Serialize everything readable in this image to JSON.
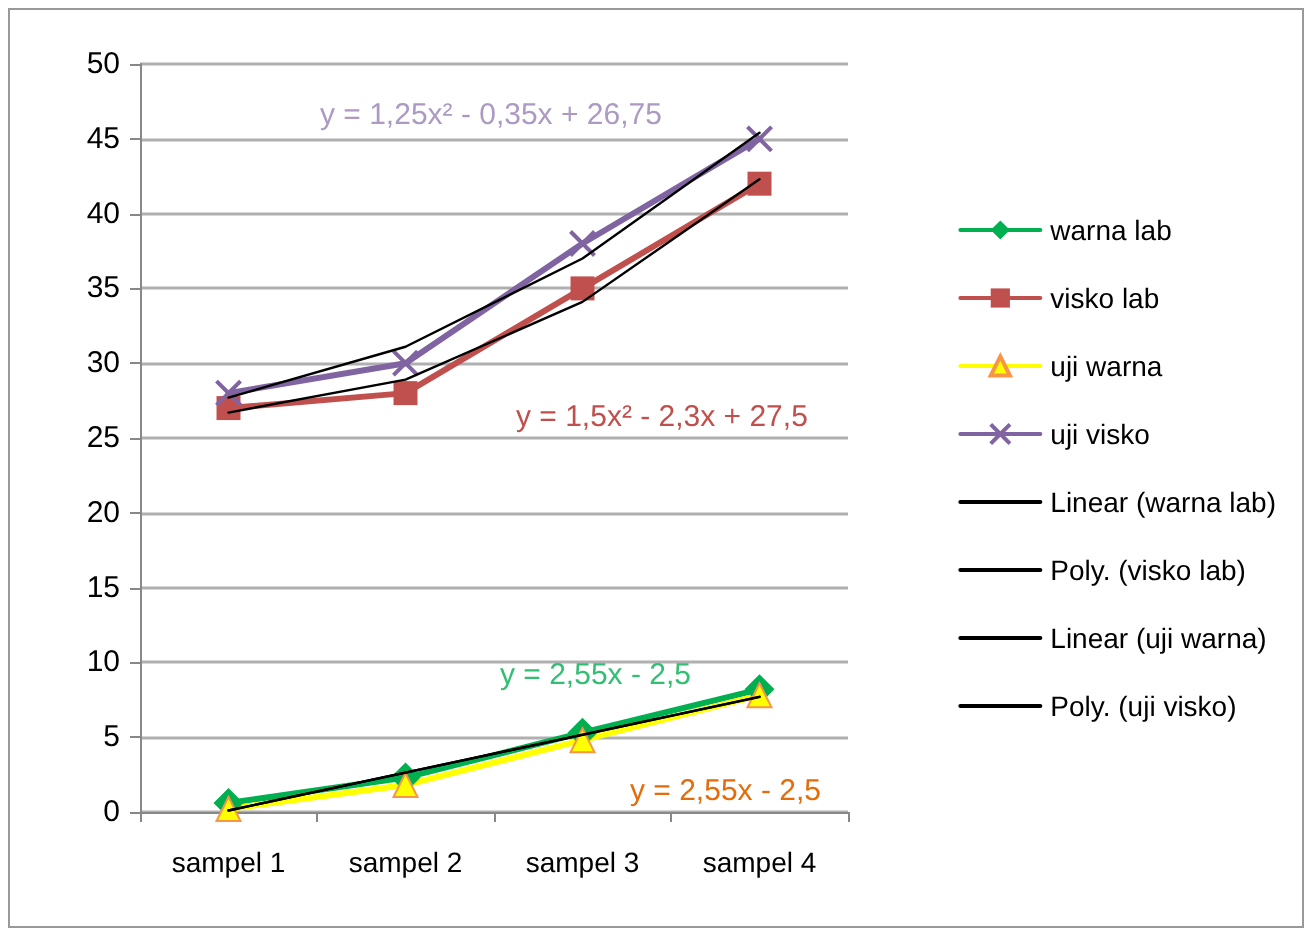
{
  "chart_data": {
    "type": "line",
    "categories": [
      "sampel 1",
      "sampel 2",
      "sampel 3",
      "sampel 4"
    ],
    "series": [
      {
        "name": "warna lab",
        "color": "#00b050",
        "marker": "diamond",
        "values": [
          0.6,
          2.3,
          5.3,
          8.2
        ]
      },
      {
        "name": "visko lab",
        "color": "#c0504d",
        "marker": "square",
        "values": [
          27,
          28,
          35,
          42
        ]
      },
      {
        "name": "uji warna",
        "color": "#ffff00",
        "marker": "triangle",
        "values": [
          0.2,
          1.8,
          4.8,
          7.8
        ]
      },
      {
        "name": "uji visko",
        "color": "#8064a2",
        "marker": "cross",
        "values": [
          28,
          30,
          38,
          45
        ]
      },
      {
        "name": "Linear (warna lab)",
        "color": "#000000",
        "marker": "none",
        "x": [
          "sampel 1",
          "sampel 4"
        ],
        "values": [
          0.1,
          7.7
        ]
      },
      {
        "name": "Poly. (visko lab)",
        "color": "#000000",
        "marker": "none",
        "x": [
          "sampel 1",
          "sampel 2",
          "sampel 3",
          "sampel 4"
        ],
        "values": [
          26.7,
          28.9,
          34.1,
          42.3
        ]
      },
      {
        "name": "Linear (uji warna)",
        "color": "#000000",
        "marker": "none",
        "x": [
          "sampel 1",
          "sampel 4"
        ],
        "values": [
          0.1,
          7.7
        ]
      },
      {
        "name": "Poly. (uji visko)",
        "color": "#000000",
        "marker": "none",
        "x": [
          "sampel 1",
          "sampel 2",
          "sampel 3",
          "sampel 4"
        ],
        "values": [
          27.7,
          31.1,
          37,
          45.4
        ]
      }
    ],
    "annotations": [
      "y = 1,25x² - 0,35x + 26,75",
      "y = 1,5x² - 2,3x + 27,5",
      "y = 2,55x - 2,5",
      "y = 2,55x - 2,5"
    ],
    "ylim": [
      0,
      50
    ],
    "yticks": [
      0,
      5,
      10,
      15,
      20,
      25,
      30,
      35,
      40,
      45,
      50
    ],
    "grid": "y",
    "legend": "right",
    "line_style": "solid"
  }
}
